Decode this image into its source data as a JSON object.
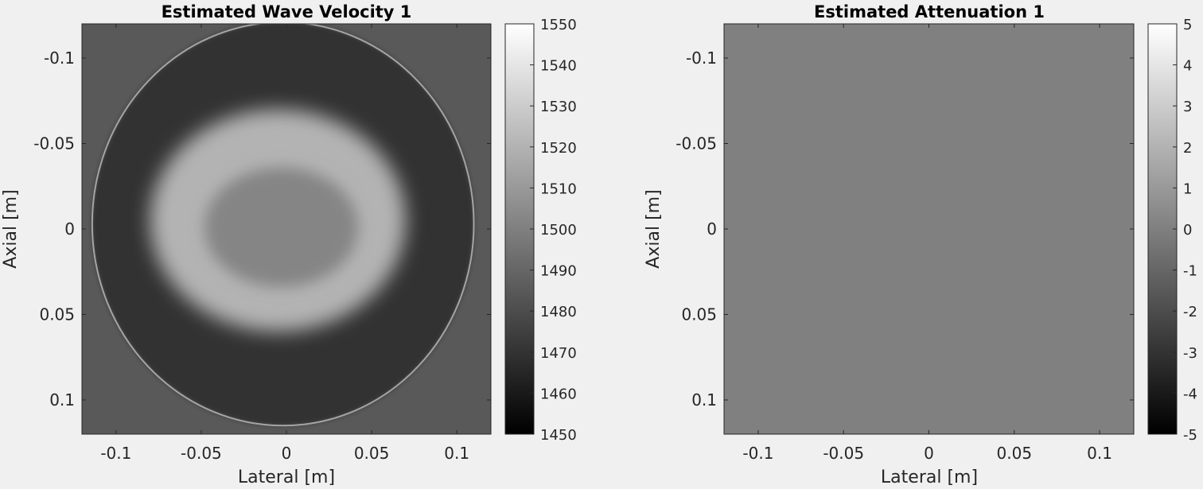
{
  "chart_data": [
    {
      "type": "heatmap",
      "title": "Estimated Wave Velocity 1",
      "xlabel": "Lateral [m]",
      "ylabel": "Axial [m]",
      "xlim": [
        -0.12,
        0.12
      ],
      "ylim": [
        -0.12,
        0.12
      ],
      "y_direction": "reverse",
      "x_ticks": [
        -0.1,
        -0.05,
        0,
        0.05,
        0.1
      ],
      "x_tick_labels": [
        "-0.1",
        "-0.05",
        "0",
        "0.05",
        "0.1"
      ],
      "y_ticks": [
        -0.1,
        -0.05,
        0,
        0.05,
        0.1
      ],
      "y_tick_labels": [
        "-0.1",
        "-0.05",
        "0",
        "0.05",
        "0.1"
      ],
      "colormap": "gray",
      "clim": [
        1450,
        1550
      ],
      "colorbar_ticks": [
        1450,
        1460,
        1470,
        1480,
        1490,
        1500,
        1510,
        1520,
        1530,
        1540,
        1550
      ],
      "colorbar_tick_labels": [
        "1450",
        "1460",
        "1470",
        "1480",
        "1490",
        "1500",
        "1510",
        "1520",
        "1530",
        "1540",
        "1550"
      ],
      "background_value": 1485,
      "structures": {
        "outer_region": {
          "center": [
            -0.002,
            -0.003
          ],
          "radius_x": 0.112,
          "radius_y": 0.118,
          "value": 1470
        },
        "inner_region": {
          "center": [
            -0.005,
            -0.005
          ],
          "radius_x": 0.075,
          "radius_y": 0.065,
          "value": 1520
        },
        "core": {
          "center": [
            -0.003,
            -0.001
          ],
          "radius_x": 0.045,
          "radius_y": 0.035,
          "value": 1502
        }
      }
    },
    {
      "type": "heatmap",
      "title": "Estimated Attenuation 1",
      "xlabel": "Lateral [m]",
      "ylabel": "Axial [m]",
      "xlim": [
        -0.12,
        0.12
      ],
      "ylim": [
        -0.12,
        0.12
      ],
      "y_direction": "reverse",
      "x_ticks": [
        -0.1,
        -0.05,
        0,
        0.05,
        0.1
      ],
      "x_tick_labels": [
        "-0.1",
        "-0.05",
        "0",
        "0.05",
        "0.1"
      ],
      "y_ticks": [
        -0.1,
        -0.05,
        0,
        0.05,
        0.1
      ],
      "y_tick_labels": [
        "-0.1",
        "-0.05",
        "0",
        "0.05",
        "0.1"
      ],
      "colormap": "gray",
      "clim": [
        -5,
        5
      ],
      "colorbar_ticks": [
        -5,
        -4,
        -3,
        -2,
        -1,
        0,
        1,
        2,
        3,
        4,
        5
      ],
      "colorbar_tick_labels": [
        "-5",
        "-4",
        "-3",
        "-2",
        "-1",
        "0",
        "1",
        "2",
        "3",
        "4",
        "5"
      ],
      "background_value": 0
    }
  ]
}
